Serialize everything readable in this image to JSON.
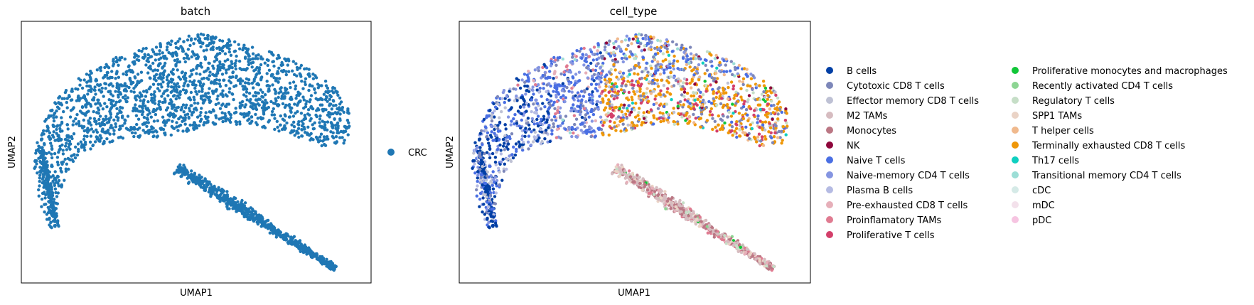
{
  "figure": {
    "panels": [
      {
        "title": "batch",
        "xlabel": "UMAP1",
        "ylabel": "UMAP2",
        "legend": [
          {
            "label": "CRC",
            "color": "#1f77b4"
          }
        ]
      },
      {
        "title": "cell_type",
        "xlabel": "UMAP1",
        "ylabel": "UMAP2",
        "legend": [
          {
            "label": "B cells",
            "color": "#023fa5"
          },
          {
            "label": "Cytotoxic CD8 T cells",
            "color": "#7d87b9"
          },
          {
            "label": "Effector memory CD8 T cells",
            "color": "#bec1d4"
          },
          {
            "label": "M2 TAMs",
            "color": "#d6bcc0"
          },
          {
            "label": "Monocytes",
            "color": "#bb7784"
          },
          {
            "label": "NK",
            "color": "#8e063b"
          },
          {
            "label": "Naive T cells",
            "color": "#4a6fe3"
          },
          {
            "label": "Naive-memory CD4 T cells",
            "color": "#8595e1"
          },
          {
            "label": "Plasma B cells",
            "color": "#b5bbe3"
          },
          {
            "label": "Pre-exhausted CD8 T cells",
            "color": "#e6afb9"
          },
          {
            "label": "Proinflamatory TAMs",
            "color": "#e07b91"
          },
          {
            "label": "Proliferative T cells",
            "color": "#d33f6a"
          },
          {
            "label": "Proliferative monocytes and macrophages",
            "color": "#11c638"
          },
          {
            "label": "Recently activated CD4 T cells",
            "color": "#8dd593"
          },
          {
            "label": "Regulatory T cells",
            "color": "#c6dec7"
          },
          {
            "label": "SPP1 TAMs",
            "color": "#ead3c6"
          },
          {
            "label": "T helper cells",
            "color": "#f0b98d"
          },
          {
            "label": "Terminally exhausted CD8 T cells",
            "color": "#ef9708"
          },
          {
            "label": "Th17 cells",
            "color": "#0fcfc0"
          },
          {
            "label": "Transitional memory CD4 T cells",
            "color": "#9cded6"
          },
          {
            "label": "cDC",
            "color": "#d5eae7"
          },
          {
            "label": "mDC",
            "color": "#f3e1eb"
          },
          {
            "label": "pDC",
            "color": "#f6c4e1"
          }
        ]
      }
    ]
  },
  "chart_data": [
    {
      "type": "scatter",
      "title": "batch",
      "xlabel": "UMAP1",
      "ylabel": "UMAP2",
      "x_ticks": [],
      "y_ticks": [],
      "legend_placement": "right",
      "color_by": "batch",
      "series": [
        {
          "name": "CRC",
          "color": "#1f77b4"
        }
      ]
    },
    {
      "type": "scatter",
      "title": "cell_type",
      "xlabel": "UMAP1",
      "ylabel": "UMAP2",
      "x_ticks": [],
      "y_ticks": [],
      "legend_placement": "right",
      "color_by": "cell_type",
      "series": [
        {
          "name": "B cells",
          "color": "#023fa5"
        },
        {
          "name": "Cytotoxic CD8 T cells",
          "color": "#7d87b9"
        },
        {
          "name": "Effector memory CD8 T cells",
          "color": "#bec1d4"
        },
        {
          "name": "M2 TAMs",
          "color": "#d6bcc0"
        },
        {
          "name": "Monocytes",
          "color": "#bb7784"
        },
        {
          "name": "NK",
          "color": "#8e063b"
        },
        {
          "name": "Naive T cells",
          "color": "#4a6fe3"
        },
        {
          "name": "Naive-memory CD4 T cells",
          "color": "#8595e1"
        },
        {
          "name": "Plasma B cells",
          "color": "#b5bbe3"
        },
        {
          "name": "Pre-exhausted CD8 T cells",
          "color": "#e6afb9"
        },
        {
          "name": "Proinflamatory TAMs",
          "color": "#e07b91"
        },
        {
          "name": "Proliferative T cells",
          "color": "#d33f6a"
        },
        {
          "name": "Proliferative monocytes and macrophages",
          "color": "#11c638"
        },
        {
          "name": "Recently activated CD4 T cells",
          "color": "#8dd593"
        },
        {
          "name": "Regulatory T cells",
          "color": "#c6dec7"
        },
        {
          "name": "SPP1 TAMs",
          "color": "#ead3c6"
        },
        {
          "name": "T helper cells",
          "color": "#f0b98d"
        },
        {
          "name": "Terminally exhausted CD8 T cells",
          "color": "#ef9708"
        },
        {
          "name": "Th17 cells",
          "color": "#0fcfc0"
        },
        {
          "name": "Transitional memory CD4 T cells",
          "color": "#9cded6"
        },
        {
          "name": "cDC",
          "color": "#d5eae7"
        },
        {
          "name": "mDC",
          "color": "#f3e1eb"
        },
        {
          "name": "pDC",
          "color": "#f6c4e1"
        }
      ]
    }
  ]
}
